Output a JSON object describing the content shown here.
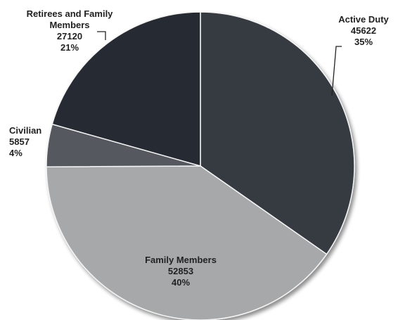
{
  "chart_data": {
    "type": "pie",
    "title": "",
    "start_angle_deg": 0,
    "direction": "clockwise",
    "slices": [
      {
        "name": "Active Duty",
        "value": 45622,
        "percent": "35%",
        "color": "#353a40",
        "label_on_dark": false
      },
      {
        "name": "Family Members",
        "value": 52853,
        "percent": "40%",
        "color": "#a6a8aa",
        "label_on_dark": false
      },
      {
        "name": "Civilian",
        "value": 5857,
        "percent": "4%",
        "color": "#54595e",
        "label_on_dark": false
      },
      {
        "name": "Retirees and Family Members",
        "value": 27120,
        "percent": "21%",
        "color": "#262b31",
        "label_on_dark": false
      }
    ],
    "label_lines": [
      [
        "Active Duty",
        "45622",
        "35%"
      ],
      [
        "Family Members",
        "52853",
        "40%"
      ],
      [
        "Civilian",
        "5857",
        "4%"
      ],
      [
        "Retirees and Family",
        "Members",
        "27120",
        "21%"
      ]
    ]
  }
}
